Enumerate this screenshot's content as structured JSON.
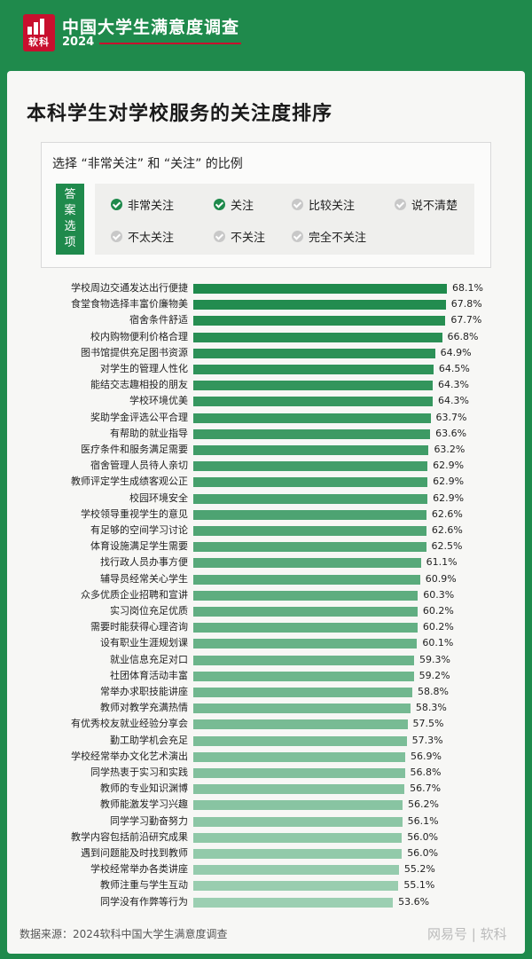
{
  "header": {
    "survey_title": "中国大学生满意度调查",
    "year": "2024",
    "logo_text": "软科"
  },
  "title": "本科学生对学校服务的关注度排序",
  "legend": {
    "heading": "选择 “非常关注” 和 “关注” 的比例",
    "tag": "答案选项",
    "options": [
      {
        "label": "非常关注",
        "selected": true
      },
      {
        "label": "关注",
        "selected": true
      },
      {
        "label": "比较关注",
        "selected": false
      },
      {
        "label": "说不清楚",
        "selected": false
      },
      {
        "label": "不太关注",
        "selected": false
      },
      {
        "label": "不关注",
        "selected": false
      },
      {
        "label": "完全不关注",
        "selected": false
      }
    ]
  },
  "colors": {
    "brand_green": "#1f8a4c",
    "bar_dark": "#1f8a4c",
    "bar_light": "#9ccfb2",
    "logo_red": "#c8102e"
  },
  "chart_data": {
    "type": "bar",
    "orientation": "horizontal",
    "categories": [
      "学校周边交通发达出行便捷",
      "食堂食物选择丰富价廉物美",
      "宿舍条件舒适",
      "校内购物便利价格合理",
      "图书馆提供充足图书资源",
      "对学生的管理人性化",
      "能结交志趣相投的朋友",
      "学校环境优美",
      "奖助学金评选公平合理",
      "有帮助的就业指导",
      "医疗条件和服务满足需要",
      "宿舍管理人员待人亲切",
      "教师评定学生成绩客观公正",
      "校园环境安全",
      "学校领导重视学生的意见",
      "有足够的空间学习讨论",
      "体育设施满足学生需要",
      "找行政人员办事方便",
      "辅导员经常关心学生",
      "众多优质企业招聘和宣讲",
      "实习岗位充足优质",
      "需要时能获得心理咨询",
      "设有职业生涯规划课",
      "就业信息充足对口",
      "社团体育活动丰富",
      "常举办求职技能讲座",
      "教师对教学充满热情",
      "有优秀校友就业经验分享会",
      "勤工助学机会充足",
      "学校经常举办文化艺术演出",
      "同学热衷于实习和实践",
      "教师的专业知识渊博",
      "教师能激发学习兴趣",
      "同学学习勤奋努力",
      "教学内容包括前沿研究成果",
      "遇到问题能及时找到教师",
      "学校经常举办各类讲座",
      "教师注重与学生互动",
      "同学没有作弊等行为"
    ],
    "values": [
      68.1,
      67.8,
      67.7,
      66.8,
      64.9,
      64.5,
      64.3,
      64.3,
      63.7,
      63.6,
      63.2,
      62.9,
      62.9,
      62.9,
      62.6,
      62.6,
      62.5,
      61.1,
      60.9,
      60.3,
      60.2,
      60.2,
      60.1,
      59.3,
      59.2,
      58.8,
      58.3,
      57.5,
      57.3,
      56.9,
      56.8,
      56.7,
      56.2,
      56.1,
      56.0,
      56.0,
      55.2,
      55.1,
      53.6
    ],
    "value_labels": [
      "68.1%",
      "67.8%",
      "67.7%",
      "66.8%",
      "64.9%",
      "64.5%",
      "64.3%",
      "64.3%",
      "63.7%",
      "63.6%",
      "63.2%",
      "62.9%",
      "62.9%",
      "62.9%",
      "62.6%",
      "62.6%",
      "62.5%",
      "61.1%",
      "60.9%",
      "60.3%",
      "60.2%",
      "60.2%",
      "60.1%",
      "59.3%",
      "59.2%",
      "58.8%",
      "58.3%",
      "57.5%",
      "57.3%",
      "56.9%",
      "56.8%",
      "56.7%",
      "56.2%",
      "56.1%",
      "56.0%",
      "56.0%",
      "55.2%",
      "55.1%",
      "53.6%"
    ],
    "unit": "%",
    "grid": false
  },
  "source": "数据来源：2024软科中国大学生满意度调查",
  "watermark": "网易号 | 软科"
}
